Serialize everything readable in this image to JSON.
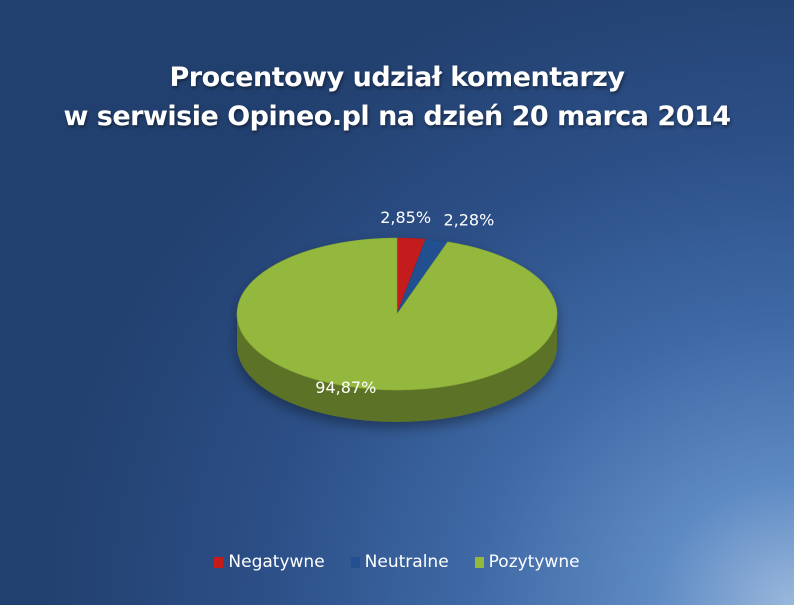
{
  "chart_data": {
    "type": "pie",
    "title_line1": "Procentowy udział komentarzy",
    "title_line2": "w serwisie Opineo.pl na dzień 20 marca 2014",
    "slices": [
      {
        "name": "Negatywne",
        "value": 2.85,
        "label": "2,85%",
        "color": "#c41b1b"
      },
      {
        "name": "Neutralne",
        "value": 2.28,
        "label": "2,28%",
        "color": "#24508f"
      },
      {
        "name": "Pozytywne",
        "value": 94.87,
        "label": "94,87%",
        "color": "#94b83c"
      }
    ],
    "legend_position": "bottom",
    "style": "3d"
  }
}
